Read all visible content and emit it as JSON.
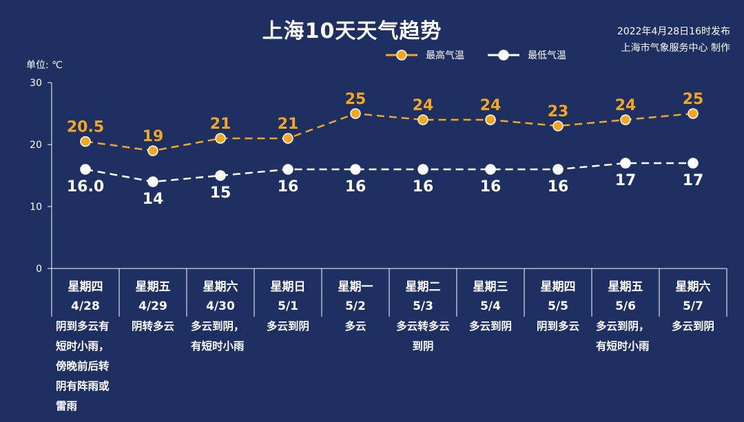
{
  "title": "上海10天天气趋势",
  "publish": {
    "line1": "2022年4月28日16时发布",
    "line2": "上海市气象服务中心 制作"
  },
  "unit_label": "单位: ℃",
  "colors": {
    "background": "#1e2f62",
    "high": "#f5a623",
    "low": "#ffffff",
    "axis": "#ffffff"
  },
  "chart_data": {
    "type": "line",
    "title": "上海10天天气趋势",
    "ylabel": "单位: ℃",
    "ylim": [
      0,
      30
    ],
    "yticks": [
      0,
      10,
      20,
      30
    ],
    "grid": false,
    "legend_position": "top-right",
    "categories": [
      {
        "weekday": "星期四",
        "date": "4/28"
      },
      {
        "weekday": "星期五",
        "date": "4/29"
      },
      {
        "weekday": "星期六",
        "date": "4/30"
      },
      {
        "weekday": "星期日",
        "date": "5/1"
      },
      {
        "weekday": "星期一",
        "date": "5/2"
      },
      {
        "weekday": "星期二",
        "date": "5/3"
      },
      {
        "weekday": "星期三",
        "date": "5/4"
      },
      {
        "weekday": "星期四",
        "date": "5/5"
      },
      {
        "weekday": "星期五",
        "date": "5/6"
      },
      {
        "weekday": "星期六",
        "date": "5/7"
      }
    ],
    "series": [
      {
        "name": "最高气温",
        "values": [
          20.5,
          19,
          21,
          21,
          25,
          24,
          24,
          23,
          24,
          25
        ],
        "labels": [
          "20.5",
          "19",
          "21",
          "21",
          "25",
          "24",
          "24",
          "23",
          "24",
          "25"
        ]
      },
      {
        "name": "最低气温",
        "values": [
          16,
          14,
          15,
          16,
          16,
          16,
          16,
          16,
          17,
          17
        ],
        "labels": [
          "16.0",
          "14",
          "15",
          "16",
          "16",
          "16",
          "16",
          "16",
          "17",
          "17"
        ]
      }
    ],
    "weather": [
      "阴到多云有短时小雨，傍晚前后转阴有阵雨或雷雨",
      "阴转多云",
      "多云到阴，有短时小雨",
      "多云到阴",
      "多云",
      "多云转多云到阴",
      "多云到阴",
      "阴到多云",
      "多云到阴，有短时小雨",
      "多云到阴"
    ]
  }
}
